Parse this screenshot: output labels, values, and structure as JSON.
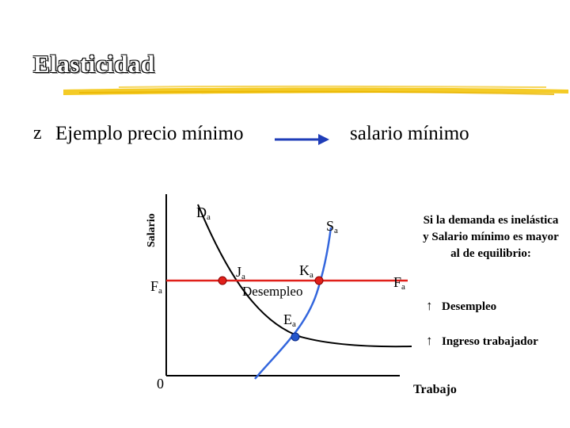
{
  "title": "Elasticidad",
  "bullet": {
    "glyph": "z",
    "text_left": "Ejemplo precio mínimo",
    "text_right": "salario mínimo"
  },
  "diagram": {
    "y_axis_label": "Salario",
    "x_axis_label": "Trabajo",
    "origin": "0",
    "demand_label": "D",
    "demand_sub": "a",
    "supply_label": "S",
    "supply_sub": "a",
    "min_wage_label": "F",
    "min_wage_sub": "a",
    "min_wage_right_label": "F",
    "min_wage_right_sub": "a",
    "point_j_label": "J",
    "point_j_sub": "a",
    "point_k_label": "K",
    "point_k_sub": "a",
    "point_e_label": "E",
    "point_e_sub": "a",
    "gap_label": "Desempleo"
  },
  "note": {
    "text": "Si la demanda es inelástica y Salario mínimo es mayor al de equilibrio:",
    "effects": [
      {
        "arrow": "↑",
        "label": "Desempleo"
      },
      {
        "arrow": "↑",
        "label": "Ingreso trabajador"
      }
    ]
  },
  "colors": {
    "demand_curve": "#000000",
    "supply_curve": "#3366dd",
    "min_wage_line": "#e0201a",
    "point_fill": "#e0201a",
    "equilibrium_fill": "#2255cc",
    "title_underline": "#f2c200",
    "bullet_arrow": "#1f3db8"
  }
}
